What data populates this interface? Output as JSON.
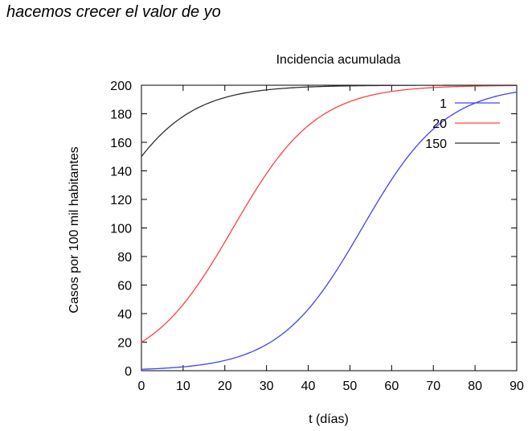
{
  "heading": "hacemos crecer el valor de yo",
  "chart_data": {
    "type": "line",
    "title": "Incidencia acumulada",
    "xlabel": "t (días)",
    "ylabel": "Casos por 100 mil habitantes",
    "xlim": [
      0,
      90
    ],
    "ylim": [
      0,
      200
    ],
    "xticks": [
      0,
      10,
      20,
      30,
      40,
      50,
      60,
      70,
      80,
      90
    ],
    "yticks": [
      0,
      20,
      40,
      60,
      80,
      100,
      120,
      140,
      160,
      180,
      200
    ],
    "grid": false,
    "legend_position": "top-right",
    "model": {
      "form": "logistic",
      "K": 200,
      "r": 0.1
    },
    "series": [
      {
        "name": "1",
        "y0": 1,
        "color": "#4040ff"
      },
      {
        "name": "20",
        "y0": 20,
        "color": "#ff4040"
      },
      {
        "name": "150",
        "y0": 150,
        "color": "#303030"
      }
    ]
  }
}
